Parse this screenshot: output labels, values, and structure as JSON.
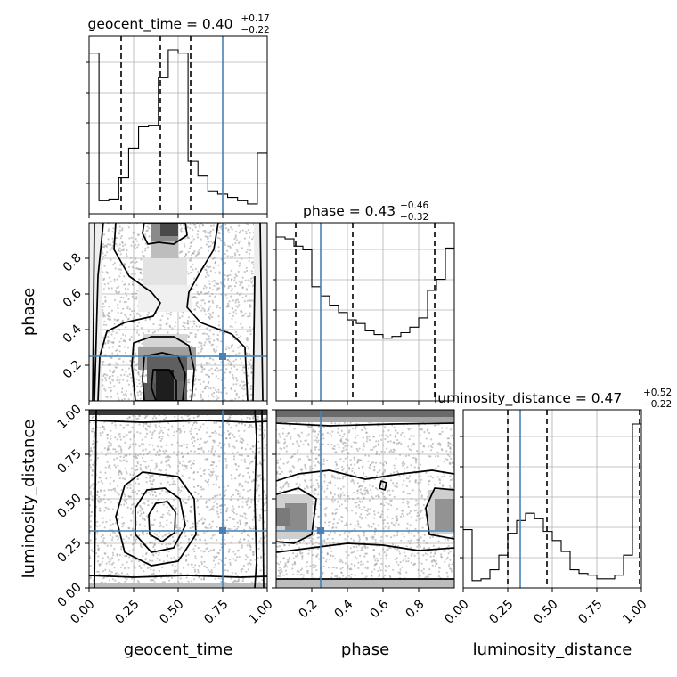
{
  "chart_data": {
    "type": "corner-plot",
    "parameters": [
      "geocent_time",
      "phase",
      "luminosity_distance"
    ],
    "truths": [
      0.75,
      0.25,
      0.32
    ],
    "quantiles": [
      [
        0.18,
        0.4,
        0.57
      ],
      [
        0.11,
        0.43,
        0.89
      ],
      [
        0.25,
        0.47,
        0.99
      ]
    ],
    "titles": [
      {
        "main": "geocent_time = 0.40",
        "sup": "+0.17",
        "sub": "−0.22"
      },
      {
        "main": "phase = 0.43",
        "sup": "+0.46",
        "sub": "−0.32"
      },
      {
        "main": "luminosity_distance = 0.47",
        "sup": "+0.52",
        "sub": "−0.22"
      }
    ],
    "axis_labels": {
      "x": [
        "geocent_time",
        "phase",
        "luminosity_distance"
      ],
      "y": [
        "phase",
        "luminosity_distance"
      ]
    },
    "ticks": {
      "geocent_time": [
        "0.00",
        "0.25",
        "0.50",
        "0.75",
        "1.00"
      ],
      "phase": [
        "0.2",
        "0.4",
        "0.6",
        "0.8"
      ],
      "luminosity_distance": [
        "0.00",
        "0.25",
        "0.50",
        "0.75",
        "1.00"
      ]
    },
    "ranges": {
      "geocent_time": [
        0,
        1
      ],
      "phase": [
        0.0,
        1.0
      ],
      "luminosity_distance": [
        0,
        1
      ]
    },
    "histograms": {
      "geocent_time": {
        "range": [
          0,
          1
        ],
        "values": [
          0.98,
          0.08,
          0.09,
          0.22,
          0.4,
          0.53,
          0.54,
          0.83,
          1.0,
          0.98,
          0.32,
          0.23,
          0.14,
          0.12,
          0.1,
          0.08,
          0.06,
          0.37
        ]
      },
      "phase": {
        "range": [
          0.0,
          1.0
        ],
        "values": [
          0.89,
          0.88,
          0.84,
          0.82,
          0.62,
          0.57,
          0.52,
          0.48,
          0.44,
          0.42,
          0.38,
          0.36,
          0.34,
          0.35,
          0.37,
          0.4,
          0.45,
          0.6,
          0.66,
          0.83
        ]
      },
      "luminosity_distance": {
        "range": [
          0,
          1
        ],
        "values": [
          0.32,
          0.04,
          0.05,
          0.1,
          0.18,
          0.3,
          0.37,
          0.41,
          0.38,
          0.31,
          0.26,
          0.2,
          0.1,
          0.08,
          0.07,
          0.05,
          0.05,
          0.07,
          0.18,
          0.9
        ]
      }
    },
    "grid": true
  }
}
